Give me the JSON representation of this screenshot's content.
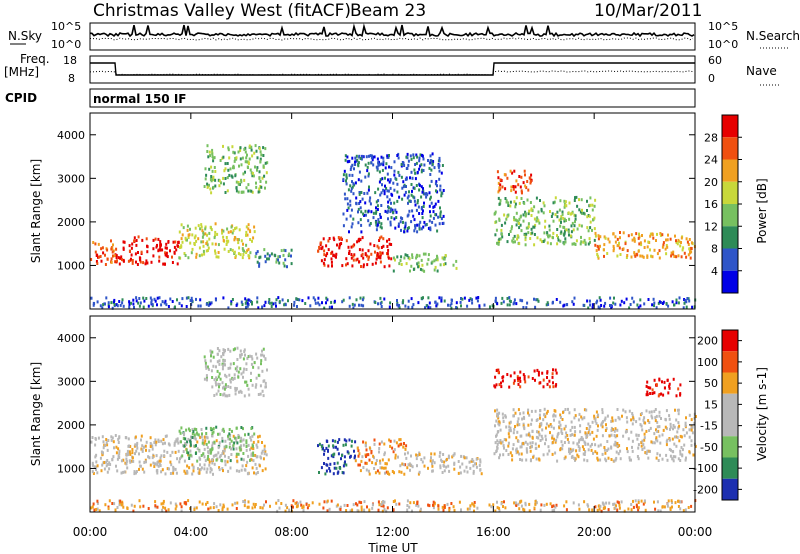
{
  "header": {
    "station": "Christmas Valley West (fitACF)",
    "beam": "Beam 23",
    "date": "10/Mar/2011"
  },
  "status_panels": {
    "nsky_label": "N.Sky",
    "nsky_ticks": [
      "10^5",
      "10^0"
    ],
    "nsearch_label": "N.Search",
    "nsearch_ticks": [
      "10^5",
      "10^0"
    ],
    "freq_label_line1": "Freq.",
    "freq_label_line2": "[MHz]",
    "freq_ticks": [
      "18",
      "8"
    ],
    "nave_label": "Nave",
    "nave_ticks": [
      "60",
      "0"
    ],
    "cpid_label": "CPID",
    "cpid_value": "normal 150 IF"
  },
  "chart_data": [
    {
      "type": "heatmap",
      "title": "",
      "quantity": "Power",
      "xlabel": "Time UT",
      "ylabel": "Slant Range [km]",
      "ylim": [
        0,
        4500
      ],
      "xlim_hours": [
        0,
        24
      ],
      "yticks": [
        1000,
        2000,
        3000,
        4000
      ],
      "colorbar_label": "Power [dB]",
      "colorbar_ticks": [
        "28",
        "24",
        "20",
        "16",
        "12",
        "8",
        "4"
      ],
      "colorscale": [
        "#0000e6",
        "#2f55c8",
        "#2e8b57",
        "#77c060",
        "#c8d83a",
        "#f0a020",
        "#f05010",
        "#e60000"
      ],
      "scatter_regions": [
        {
          "t": [
            0.0,
            1.0
          ],
          "r": [
            1000,
            1600
          ],
          "level": 6
        },
        {
          "t": [
            1.0,
            3.5
          ],
          "r": [
            1050,
            1700
          ],
          "level": 7
        },
        {
          "t": [
            3.5,
            6.5
          ],
          "r": [
            1200,
            2000
          ],
          "level": 4
        },
        {
          "t": [
            6.5,
            8.0
          ],
          "r": [
            1000,
            1400
          ],
          "level": 2
        },
        {
          "t": [
            9.0,
            12.0
          ],
          "r": [
            1000,
            1700
          ],
          "level": 7
        },
        {
          "t": [
            12.0,
            14.5
          ],
          "r": [
            900,
            1300
          ],
          "level": 3
        },
        {
          "t": [
            4.5,
            7.0
          ],
          "r": [
            2700,
            3800
          ],
          "level": 3
        },
        {
          "t": [
            10.0,
            14.0
          ],
          "r": [
            1800,
            3600
          ],
          "level": 1
        },
        {
          "t": [
            16.0,
            17.5
          ],
          "r": [
            2700,
            3200
          ],
          "level": 6
        },
        {
          "t": [
            16.0,
            20.0
          ],
          "r": [
            1500,
            2600
          ],
          "level": 3
        },
        {
          "t": [
            20.0,
            24.0
          ],
          "r": [
            1200,
            1800
          ],
          "level": 5
        },
        {
          "t": [
            0.0,
            24.0
          ],
          "r": [
            50,
            300
          ],
          "level": 1
        }
      ]
    },
    {
      "type": "heatmap",
      "title": "",
      "quantity": "Velocity",
      "xlabel": "Time UT",
      "ylabel": "Slant Range [km]",
      "ylim": [
        0,
        4500
      ],
      "xlim_hours": [
        0,
        24
      ],
      "yticks": [
        1000,
        2000,
        3000,
        4000
      ],
      "colorbar_label": "Velocity [m s-1]",
      "colorbar_ticks": [
        "200",
        "100",
        "50",
        "15",
        "-15",
        "-50",
        "-100",
        "-200"
      ],
      "colorscale": [
        "#1c2fb0",
        "#2e8b57",
        "#77c060",
        "#b8b8b8",
        "#b8b8b8",
        "#f0a020",
        "#f05010",
        "#e60000"
      ],
      "scatter_regions": [
        {
          "t": [
            0.0,
            7.0
          ],
          "r": [
            900,
            1800
          ],
          "level": 4
        },
        {
          "t": [
            3.5,
            6.5
          ],
          "r": [
            1200,
            2000
          ],
          "level": 2
        },
        {
          "t": [
            9.0,
            10.5
          ],
          "r": [
            900,
            1700
          ],
          "level": 0
        },
        {
          "t": [
            10.5,
            12.5
          ],
          "r": [
            900,
            1700
          ],
          "level": 5
        },
        {
          "t": [
            12.5,
            15.5
          ],
          "r": [
            900,
            1400
          ],
          "level": 4
        },
        {
          "t": [
            16.0,
            18.5
          ],
          "r": [
            2900,
            3300
          ],
          "level": 7
        },
        {
          "t": [
            16.0,
            24.0
          ],
          "r": [
            1200,
            2400
          ],
          "level": 4
        },
        {
          "t": [
            22.0,
            23.5
          ],
          "r": [
            2700,
            3100
          ],
          "level": 7
        },
        {
          "t": [
            4.5,
            7.0
          ],
          "r": [
            2700,
            3800
          ],
          "level": 3
        },
        {
          "t": [
            0.0,
            24.0
          ],
          "r": [
            50,
            300
          ],
          "level": 5
        }
      ]
    }
  ],
  "time_axis": {
    "label": "Time UT",
    "ticks": [
      "00:00",
      "04:00",
      "08:00",
      "12:00",
      "16:00",
      "20:00",
      "00:00"
    ]
  },
  "colors": {
    "background": "#ffffff",
    "axis": "#000000"
  }
}
